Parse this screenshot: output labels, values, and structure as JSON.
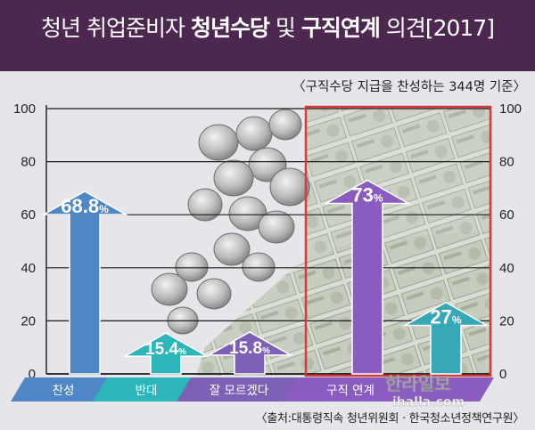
{
  "header": {
    "title_prefix": "청년 취업준비자 ",
    "title_bold_1": "청년수당",
    "title_mid": " 및 ",
    "title_bold_2": "구직연계",
    "title_suffix": " 의견[2017]"
  },
  "subtitle": "〈구직수당 지급을 찬성하는 344명 기준〉",
  "source": "〈출처:대통령직속 청년위원회 · 한국청소년정책연구원〉",
  "watermark": "한라일보 ihalla.com",
  "colors": {
    "header": "#4c2750",
    "approve": "#4f86c6",
    "oppose": "#2cb6b9",
    "unsure": "#7d61b7",
    "job_link_yes": "#8a5cc0",
    "job_link_no": "#37a8b8",
    "highlight_border": "#d83a3a"
  },
  "chart_data": [
    {
      "type": "bar",
      "categories": [
        "찬성",
        "반대",
        "잘 모르겠다"
      ],
      "values": [
        68.8,
        15.4,
        15.8
      ],
      "value_labels": [
        "68.8%",
        "15.4%",
        "15.8%"
      ],
      "ylim": [
        0,
        100
      ],
      "yticks": [
        0,
        20,
        40,
        60,
        80,
        100
      ],
      "grid": true
    },
    {
      "type": "bar",
      "categories": [
        "구직 연계",
        ""
      ],
      "values": [
        73,
        27
      ],
      "value_labels": [
        "73%",
        "27%"
      ],
      "ylim": [
        0,
        100
      ],
      "yticks": [
        0,
        20,
        40,
        60,
        80,
        100
      ],
      "grid": true
    }
  ]
}
